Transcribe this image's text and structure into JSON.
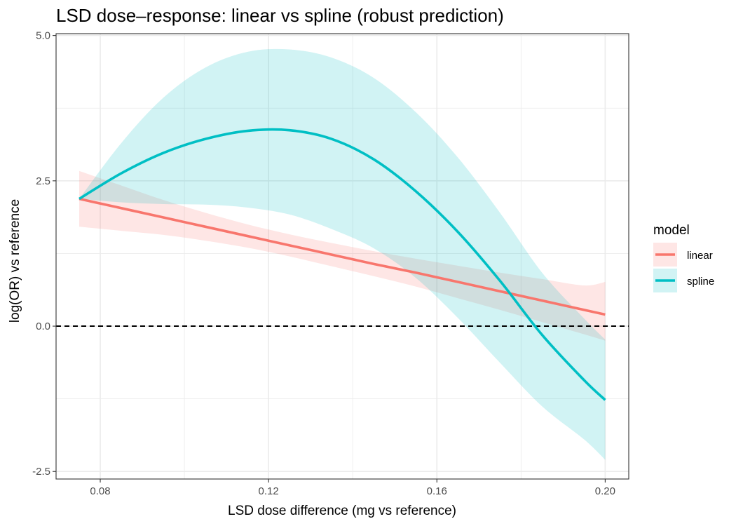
{
  "chart_data": {
    "type": "line",
    "title": "LSD dose–response: linear vs spline (robust prediction)",
    "xlabel": "LSD dose difference (mg vs reference)",
    "ylabel": "log(OR) vs reference",
    "xlim": [
      0.0695,
      0.2056
    ],
    "ylim": [
      -2.6298,
      5.0317
    ],
    "x_ticks": [
      0.08,
      0.12,
      0.16,
      0.2
    ],
    "x_tick_labels": [
      "0.08",
      "0.12",
      "0.16",
      "0.20"
    ],
    "y_ticks": [
      -2.5,
      0.0,
      2.5,
      5.0
    ],
    "y_tick_labels": [
      "-2.5",
      "0.0",
      "2.5",
      "5.0"
    ],
    "grid": true,
    "reference_line": {
      "y": 0,
      "style": "dashed",
      "color": "#000000"
    },
    "legend": {
      "title": "model",
      "position": "right"
    },
    "x": [
      0.075,
      0.085,
      0.095,
      0.105,
      0.115,
      0.125,
      0.135,
      0.145,
      0.155,
      0.165,
      0.175,
      0.185,
      0.195,
      0.2
    ],
    "series": [
      {
        "name": "linear",
        "color": "#F8766D",
        "y": [
          2.19,
          2.03,
          1.87,
          1.71,
          1.55,
          1.39,
          1.23,
          1.07,
          0.92,
          0.76,
          0.6,
          0.44,
          0.28,
          0.2
        ],
        "lower": [
          1.71,
          1.64,
          1.57,
          1.47,
          1.35,
          1.2,
          1.03,
          0.86,
          0.68,
          0.48,
          0.28,
          0.07,
          -0.14,
          -0.25
        ],
        "upper": [
          2.67,
          2.42,
          2.17,
          1.95,
          1.75,
          1.58,
          1.43,
          1.29,
          1.16,
          1.04,
          0.92,
          0.81,
          0.7,
          0.76
        ]
      },
      {
        "name": "spline",
        "color": "#00BFC4",
        "y": [
          2.19,
          2.63,
          2.98,
          3.22,
          3.36,
          3.37,
          3.22,
          2.87,
          2.32,
          1.62,
          0.78,
          -0.15,
          -0.93,
          -1.27
        ],
        "lower": [
          2.19,
          2.13,
          2.1,
          2.09,
          2.04,
          1.92,
          1.67,
          1.34,
          0.83,
          0.14,
          -0.63,
          -1.38,
          -1.95,
          -2.3
        ],
        "upper": [
          2.19,
          3.15,
          3.93,
          4.45,
          4.72,
          4.76,
          4.62,
          4.27,
          3.68,
          2.9,
          1.95,
          0.92,
          0.13,
          -0.23
        ]
      }
    ]
  }
}
